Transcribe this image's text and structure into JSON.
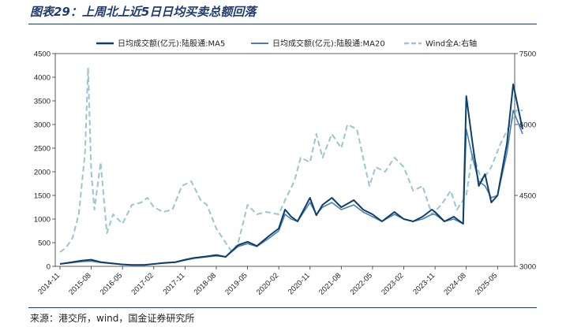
{
  "header": {
    "title": "图表29：上周北上近5日日均买卖总额回落"
  },
  "footer": {
    "source": "来源：港交所，wind，国金证券研究所"
  },
  "colors": {
    "ma5": "#0c3f6e",
    "ma20": "#4a7fb3",
    "wind": "#9bc5d0",
    "axis": "#333333"
  },
  "chart_data": {
    "type": "line",
    "title": "上周北上近5日日均买卖总额回落",
    "x_ticks": [
      "2014-11",
      "2015-08",
      "2016-05",
      "2017-02",
      "2017-11",
      "2018-08",
      "2019-05",
      "2020-02",
      "2020-11",
      "2021-08",
      "2022-05",
      "2023-02",
      "2023-11",
      "2024-08",
      "2025-05"
    ],
    "ylim_left": [
      0,
      4500
    ],
    "yticks_left": [
      "0",
      "500",
      "1000",
      "1500",
      "2000",
      "2500",
      "3000",
      "3500",
      "4000",
      "4500"
    ],
    "ylim_right": [
      3000,
      7500
    ],
    "yticks_right": [
      "3000",
      "4500",
      "6000",
      "7500"
    ],
    "legend": [
      "日均成交额(亿元):陆股通:MA5",
      "日均成交额(亿元):陆股通:MA20",
      "Wind全A:右轴"
    ],
    "series": [
      {
        "name": "日均成交额(亿元):陆股通:MA5",
        "axis": "left",
        "style": "solid",
        "points": [
          [
            0,
            50
          ],
          [
            0.3,
            80
          ],
          [
            0.7,
            120
          ],
          [
            1,
            140
          ],
          [
            1.3,
            90
          ],
          [
            1.7,
            60
          ],
          [
            2,
            40
          ],
          [
            2.3,
            30
          ],
          [
            2.7,
            30
          ],
          [
            3,
            50
          ],
          [
            3.3,
            70
          ],
          [
            3.7,
            90
          ],
          [
            4,
            140
          ],
          [
            4.3,
            180
          ],
          [
            4.7,
            210
          ],
          [
            5,
            240
          ],
          [
            5.3,
            200
          ],
          [
            5.7,
            450
          ],
          [
            6,
            520
          ],
          [
            6.3,
            430
          ],
          [
            6.7,
            650
          ],
          [
            7,
            800
          ],
          [
            7.2,
            1200
          ],
          [
            7.4,
            1050
          ],
          [
            7.6,
            950
          ],
          [
            8,
            1450
          ],
          [
            8.2,
            1080
          ],
          [
            8.4,
            1300
          ],
          [
            8.7,
            1450
          ],
          [
            9,
            1250
          ],
          [
            9.4,
            1400
          ],
          [
            9.7,
            1200
          ],
          [
            10,
            1100
          ],
          [
            10.3,
            950
          ],
          [
            10.7,
            1150
          ],
          [
            11,
            1000
          ],
          [
            11.3,
            950
          ],
          [
            11.6,
            1050
          ],
          [
            11.9,
            1200
          ],
          [
            12,
            1150
          ],
          [
            12.3,
            950
          ],
          [
            12.6,
            1050
          ],
          [
            12.9,
            900
          ],
          [
            13,
            3600
          ],
          [
            13.2,
            2600
          ],
          [
            13.4,
            1700
          ],
          [
            13.6,
            1950
          ],
          [
            13.8,
            1350
          ],
          [
            14,
            1500
          ],
          [
            14.3,
            2600
          ],
          [
            14.5,
            3850
          ],
          [
            14.8,
            2900
          ]
        ]
      },
      {
        "name": "日均成交额(亿元):陆股通:MA20",
        "axis": "left",
        "style": "solid",
        "points": [
          [
            0,
            50
          ],
          [
            0.3,
            70
          ],
          [
            0.7,
            100
          ],
          [
            1,
            110
          ],
          [
            1.3,
            80
          ],
          [
            1.7,
            55
          ],
          [
            2,
            40
          ],
          [
            2.3,
            30
          ],
          [
            2.7,
            30
          ],
          [
            3,
            50
          ],
          [
            3.3,
            65
          ],
          [
            3.7,
            85
          ],
          [
            4,
            130
          ],
          [
            4.3,
            170
          ],
          [
            4.7,
            200
          ],
          [
            5,
            220
          ],
          [
            5.3,
            200
          ],
          [
            5.7,
            420
          ],
          [
            6,
            480
          ],
          [
            6.3,
            420
          ],
          [
            6.7,
            600
          ],
          [
            7,
            750
          ],
          [
            7.2,
            1100
          ],
          [
            7.4,
            1000
          ],
          [
            7.6,
            950
          ],
          [
            8,
            1350
          ],
          [
            8.2,
            1100
          ],
          [
            8.4,
            1250
          ],
          [
            8.7,
            1350
          ],
          [
            9,
            1200
          ],
          [
            9.4,
            1300
          ],
          [
            9.7,
            1150
          ],
          [
            10,
            1050
          ],
          [
            10.3,
            950
          ],
          [
            10.7,
            1100
          ],
          [
            11,
            1000
          ],
          [
            11.3,
            950
          ],
          [
            11.6,
            1000
          ],
          [
            11.9,
            1100
          ],
          [
            12,
            1100
          ],
          [
            12.3,
            950
          ],
          [
            12.6,
            1000
          ],
          [
            12.9,
            900
          ],
          [
            13,
            2900
          ],
          [
            13.2,
            2300
          ],
          [
            13.4,
            1800
          ],
          [
            13.6,
            1700
          ],
          [
            13.8,
            1450
          ],
          [
            14,
            1500
          ],
          [
            14.3,
            2400
          ],
          [
            14.5,
            3300
          ],
          [
            14.8,
            2800
          ]
        ]
      },
      {
        "name": "Wind全A:右轴",
        "axis": "right",
        "style": "dashed",
        "points": [
          [
            0,
            3300
          ],
          [
            0.2,
            3400
          ],
          [
            0.4,
            3600
          ],
          [
            0.6,
            4100
          ],
          [
            0.8,
            5400
          ],
          [
            0.9,
            7200
          ],
          [
            1,
            5000
          ],
          [
            1.1,
            4200
          ],
          [
            1.3,
            5200
          ],
          [
            1.5,
            3700
          ],
          [
            1.7,
            4100
          ],
          [
            2,
            3900
          ],
          [
            2.3,
            4300
          ],
          [
            2.6,
            4350
          ],
          [
            2.8,
            4450
          ],
          [
            3.0,
            4250
          ],
          [
            3.3,
            4150
          ],
          [
            3.6,
            4200
          ],
          [
            3.9,
            4700
          ],
          [
            4.2,
            4800
          ],
          [
            4.5,
            4400
          ],
          [
            4.7,
            4300
          ],
          [
            5,
            3800
          ],
          [
            5.3,
            3500
          ],
          [
            5.5,
            3300
          ],
          [
            5.7,
            3500
          ],
          [
            6,
            4300
          ],
          [
            6.3,
            4100
          ],
          [
            6.6,
            4150
          ],
          [
            7,
            4100
          ],
          [
            7.2,
            4400
          ],
          [
            7.5,
            4800
          ],
          [
            7.7,
            5300
          ],
          [
            8,
            5200
          ],
          [
            8.2,
            5800
          ],
          [
            8.4,
            5300
          ],
          [
            8.7,
            5800
          ],
          [
            9,
            5500
          ],
          [
            9.2,
            6000
          ],
          [
            9.5,
            5900
          ],
          [
            9.7,
            5300
          ],
          [
            9.9,
            4700
          ],
          [
            10.1,
            5100
          ],
          [
            10.4,
            5000
          ],
          [
            10.7,
            5300
          ],
          [
            11,
            5100
          ],
          [
            11.3,
            4600
          ],
          [
            11.6,
            4700
          ],
          [
            11.9,
            4100
          ],
          [
            12.2,
            4300
          ],
          [
            12.5,
            4600
          ],
          [
            12.7,
            4200
          ],
          [
            13,
            4500
          ],
          [
            13.2,
            5400
          ],
          [
            13.5,
            4800
          ],
          [
            13.8,
            5100
          ],
          [
            14.1,
            5600
          ],
          [
            14.4,
            6000
          ],
          [
            14.6,
            6300
          ],
          [
            14.8,
            6300
          ]
        ]
      }
    ]
  }
}
